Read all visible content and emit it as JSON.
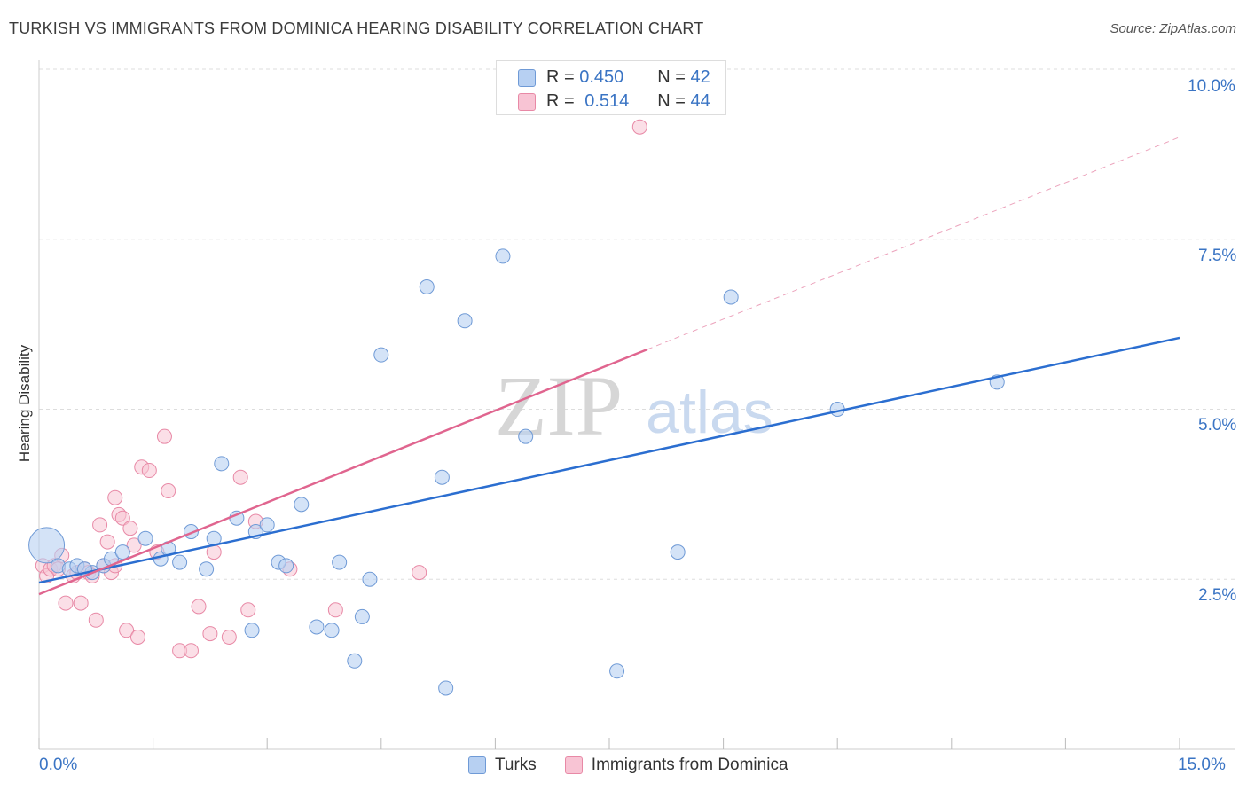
{
  "title": "TURKISH VS IMMIGRANTS FROM DOMINICA HEARING DISABILITY CORRELATION CHART",
  "source": "Source: ZipAtlas.com",
  "watermark": {
    "zip": "ZIP",
    "atlas": "atlas"
  },
  "colors": {
    "blue": "#3a74c4",
    "blue_fill": "#b7d0f2",
    "blue_line": "#2b6ed0",
    "pink_fill": "#f8c4d4",
    "pink_edge": "#e889a6",
    "pink_line": "#e0658f"
  },
  "stats": {
    "series1": {
      "r_label": "R =",
      "r_value": "0.450",
      "n_label": "N =",
      "n_value": "42"
    },
    "series2": {
      "r_label": "R =",
      "r_value": "0.514",
      "n_label": "N =",
      "n_value": "44"
    }
  },
  "legend": {
    "series1": "Turks",
    "series2": "Immigrants from Dominica"
  },
  "chart_data": {
    "type": "scatter",
    "title": "TURKISH VS IMMIGRANTS FROM DOMINICA HEARING DISABILITY CORRELATION CHART",
    "xlabel": "",
    "ylabel": "Hearing Disability",
    "xlim": [
      0,
      15
    ],
    "ylim": [
      0,
      10.5
    ],
    "x_tick_labels": [
      "0.0%",
      "15.0%"
    ],
    "y_tick_values": [
      2.5,
      5.0,
      7.5,
      10.0
    ],
    "y_tick_labels": [
      "2.5%",
      "5.0%",
      "7.5%",
      "10.0%"
    ],
    "grid": true,
    "legend_position": "bottom-center",
    "series": [
      {
        "name": "Turks",
        "color": "#3a74c4",
        "trend": {
          "x": [
            0,
            15
          ],
          "y": [
            2.45,
            6.05
          ],
          "dashed_to": null
        },
        "points": [
          {
            "x": 0.1,
            "y": 3.0,
            "big": true
          },
          {
            "x": 0.25,
            "y": 2.7
          },
          {
            "x": 0.4,
            "y": 2.65
          },
          {
            "x": 0.5,
            "y": 2.7
          },
          {
            "x": 0.7,
            "y": 2.6
          },
          {
            "x": 0.85,
            "y": 2.7
          },
          {
            "x": 0.95,
            "y": 2.8
          },
          {
            "x": 1.1,
            "y": 2.9
          },
          {
            "x": 1.4,
            "y": 3.1
          },
          {
            "x": 1.6,
            "y": 2.8
          },
          {
            "x": 1.7,
            "y": 2.95
          },
          {
            "x": 1.85,
            "y": 2.75
          },
          {
            "x": 2.0,
            "y": 3.2
          },
          {
            "x": 2.2,
            "y": 2.65
          },
          {
            "x": 2.3,
            "y": 3.1
          },
          {
            "x": 2.4,
            "y": 4.2
          },
          {
            "x": 2.6,
            "y": 3.4
          },
          {
            "x": 2.8,
            "y": 1.75
          },
          {
            "x": 2.85,
            "y": 3.2
          },
          {
            "x": 3.0,
            "y": 3.3
          },
          {
            "x": 3.15,
            "y": 2.75
          },
          {
            "x": 3.25,
            "y": 2.7
          },
          {
            "x": 3.45,
            "y": 3.6
          },
          {
            "x": 3.65,
            "y": 1.8
          },
          {
            "x": 3.85,
            "y": 1.75
          },
          {
            "x": 3.95,
            "y": 2.75
          },
          {
            "x": 4.15,
            "y": 1.3
          },
          {
            "x": 4.25,
            "y": 1.95
          },
          {
            "x": 4.35,
            "y": 2.5
          },
          {
            "x": 4.5,
            "y": 5.8
          },
          {
            "x": 5.1,
            "y": 6.8
          },
          {
            "x": 5.3,
            "y": 4.0
          },
          {
            "x": 5.35,
            "y": 0.9
          },
          {
            "x": 5.6,
            "y": 6.3
          },
          {
            "x": 6.1,
            "y": 7.25
          },
          {
            "x": 6.4,
            "y": 4.6
          },
          {
            "x": 7.6,
            "y": 1.15
          },
          {
            "x": 8.4,
            "y": 2.9
          },
          {
            "x": 9.1,
            "y": 6.65
          },
          {
            "x": 10.5,
            "y": 5.0
          },
          {
            "x": 12.6,
            "y": 5.4
          },
          {
            "x": 0.6,
            "y": 2.65
          }
        ]
      },
      {
        "name": "Immigrants from Dominica",
        "color": "#e0658f",
        "trend": {
          "x": [
            0,
            8.0
          ],
          "y": [
            2.28,
            5.88
          ],
          "dashed_to": {
            "x": 15,
            "y": 9.0
          }
        },
        "points": [
          {
            "x": 0.05,
            "y": 2.7
          },
          {
            "x": 0.1,
            "y": 2.55
          },
          {
            "x": 0.15,
            "y": 2.65
          },
          {
            "x": 0.2,
            "y": 2.7
          },
          {
            "x": 0.25,
            "y": 2.65
          },
          {
            "x": 0.3,
            "y": 2.85
          },
          {
            "x": 0.35,
            "y": 2.15
          },
          {
            "x": 0.45,
            "y": 2.55
          },
          {
            "x": 0.5,
            "y": 2.6
          },
          {
            "x": 0.55,
            "y": 2.15
          },
          {
            "x": 0.6,
            "y": 2.65
          },
          {
            "x": 0.65,
            "y": 2.6
          },
          {
            "x": 0.7,
            "y": 2.55
          },
          {
            "x": 0.75,
            "y": 1.9
          },
          {
            "x": 0.8,
            "y": 3.3
          },
          {
            "x": 0.85,
            "y": 2.7
          },
          {
            "x": 0.9,
            "y": 3.05
          },
          {
            "x": 0.95,
            "y": 2.6
          },
          {
            "x": 1.0,
            "y": 3.7
          },
          {
            "x": 1.05,
            "y": 3.45
          },
          {
            "x": 1.1,
            "y": 3.4
          },
          {
            "x": 1.15,
            "y": 1.75
          },
          {
            "x": 1.2,
            "y": 3.25
          },
          {
            "x": 1.25,
            "y": 3.0
          },
          {
            "x": 1.3,
            "y": 1.65
          },
          {
            "x": 1.35,
            "y": 4.15
          },
          {
            "x": 1.45,
            "y": 4.1
          },
          {
            "x": 1.55,
            "y": 2.9
          },
          {
            "x": 1.65,
            "y": 4.6
          },
          {
            "x": 1.7,
            "y": 3.8
          },
          {
            "x": 1.85,
            "y": 1.45
          },
          {
            "x": 2.0,
            "y": 1.45
          },
          {
            "x": 2.1,
            "y": 2.1
          },
          {
            "x": 2.25,
            "y": 1.7
          },
          {
            "x": 2.3,
            "y": 2.9
          },
          {
            "x": 2.5,
            "y": 1.65
          },
          {
            "x": 2.65,
            "y": 4.0
          },
          {
            "x": 2.75,
            "y": 2.05
          },
          {
            "x": 2.85,
            "y": 3.35
          },
          {
            "x": 3.3,
            "y": 2.65
          },
          {
            "x": 3.9,
            "y": 2.05
          },
          {
            "x": 5.0,
            "y": 2.6
          },
          {
            "x": 7.9,
            "y": 9.15
          },
          {
            "x": 1.0,
            "y": 2.7
          }
        ]
      }
    ]
  }
}
